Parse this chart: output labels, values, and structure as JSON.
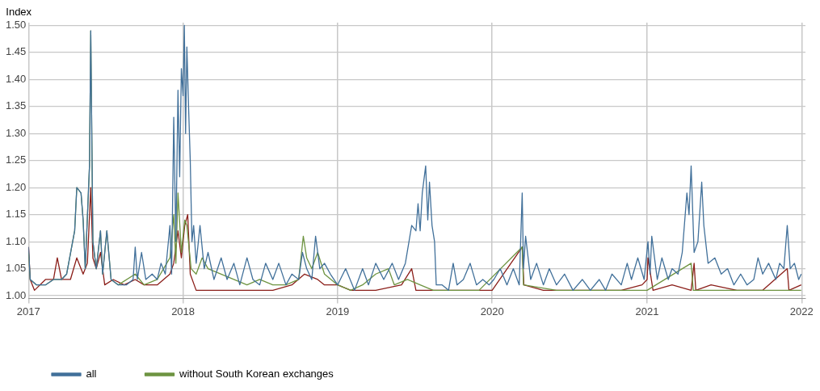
{
  "chart_data": {
    "type": "line",
    "ylabel": "Index",
    "grid": true,
    "legend": "bottom",
    "marker": "none",
    "line_style": "solid",
    "xlim": [
      "2017-01-01",
      "2022-01-10"
    ],
    "xticks": [
      {
        "value": "2017-01-01",
        "label": "2017"
      },
      {
        "value": "2018-01-01",
        "label": "2018"
      },
      {
        "value": "2019-01-01",
        "label": "2019"
      },
      {
        "value": "2020-01-01",
        "label": "2020"
      },
      {
        "value": "2021-01-01",
        "label": "2021"
      },
      {
        "value": "2022-01-01",
        "label": "2022"
      }
    ],
    "ylim": [
      0.995,
      1.505
    ],
    "yticks": [
      {
        "value": 1.0,
        "label": "1.00"
      },
      {
        "value": 1.05,
        "label": "1.05"
      },
      {
        "value": 1.1,
        "label": "1.10"
      },
      {
        "value": 1.15,
        "label": "1.15"
      },
      {
        "value": 1.2,
        "label": "1.20"
      },
      {
        "value": 1.25,
        "label": "1.25"
      },
      {
        "value": 1.3,
        "label": "1.30"
      },
      {
        "value": 1.35,
        "label": "1.35"
      },
      {
        "value": 1.4,
        "label": "1.40"
      },
      {
        "value": 1.45,
        "label": "1.45"
      },
      {
        "value": 1.5,
        "label": "1.50"
      }
    ],
    "series": [
      {
        "name": "all",
        "color": "#41709a",
        "x": [
          "2017-01-01",
          "2017-01-05",
          "2017-01-20",
          "2017-02-10",
          "2017-03-01",
          "2017-03-20",
          "2017-04-01",
          "2017-04-20",
          "2017-04-25",
          "2017-05-05",
          "2017-05-10",
          "2017-05-15",
          "2017-05-25",
          "2017-05-28",
          "2017-06-02",
          "2017-06-10",
          "2017-06-20",
          "2017-06-25",
          "2017-07-05",
          "2017-07-15",
          "2017-08-01",
          "2017-08-20",
          "2017-09-05",
          "2017-09-10",
          "2017-09-15",
          "2017-09-25",
          "2017-10-05",
          "2017-10-20",
          "2017-11-01",
          "2017-11-10",
          "2017-11-20",
          "2017-12-01",
          "2017-12-05",
          "2017-12-10",
          "2017-12-15",
          "2017-12-20",
          "2017-12-24",
          "2017-12-28",
          "2018-01-01",
          "2018-01-04",
          "2018-01-07",
          "2018-01-10",
          "2018-01-14",
          "2018-01-18",
          "2018-01-22",
          "2018-01-26",
          "2018-02-01",
          "2018-02-10",
          "2018-02-20",
          "2018-03-01",
          "2018-03-15",
          "2018-04-01",
          "2018-04-15",
          "2018-05-01",
          "2018-05-15",
          "2018-06-01",
          "2018-06-15",
          "2018-07-01",
          "2018-07-15",
          "2018-08-01",
          "2018-08-15",
          "2018-09-01",
          "2018-09-15",
          "2018-10-01",
          "2018-10-10",
          "2018-10-20",
          "2018-11-01",
          "2018-11-10",
          "2018-11-20",
          "2018-12-01",
          "2018-12-15",
          "2019-01-01",
          "2019-01-20",
          "2019-02-10",
          "2019-03-01",
          "2019-03-15",
          "2019-04-01",
          "2019-04-20",
          "2019-05-10",
          "2019-05-25",
          "2019-06-10",
          "2019-06-25",
          "2019-07-05",
          "2019-07-10",
          "2019-07-15",
          "2019-07-20",
          "2019-07-28",
          "2019-08-02",
          "2019-08-06",
          "2019-08-12",
          "2019-08-18",
          "2019-08-22",
          "2019-09-05",
          "2019-09-20",
          "2019-10-01",
          "2019-10-10",
          "2019-10-25",
          "2019-11-10",
          "2019-11-25",
          "2019-12-10",
          "2019-12-25",
          "2020-01-05",
          "2020-01-20",
          "2020-02-05",
          "2020-02-20",
          "2020-03-05",
          "2020-03-12",
          "2020-03-15",
          "2020-03-20",
          "2020-04-01",
          "2020-04-15",
          "2020-05-01",
          "2020-05-15",
          "2020-06-01",
          "2020-06-20",
          "2020-07-10",
          "2020-08-01",
          "2020-08-20",
          "2020-09-10",
          "2020-09-25",
          "2020-10-10",
          "2020-11-01",
          "2020-11-15",
          "2020-11-25",
          "2020-12-10",
          "2020-12-25",
          "2021-01-03",
          "2021-01-08",
          "2021-01-12",
          "2021-01-25",
          "2021-02-05",
          "2021-02-20",
          "2021-03-01",
          "2021-03-15",
          "2021-03-25",
          "2021-04-05",
          "2021-04-10",
          "2021-04-15",
          "2021-04-22",
          "2021-05-01",
          "2021-05-10",
          "2021-05-15",
          "2021-05-25",
          "2021-06-10",
          "2021-06-25",
          "2021-07-10",
          "2021-07-25",
          "2021-08-10",
          "2021-08-25",
          "2021-09-10",
          "2021-09-20",
          "2021-10-01",
          "2021-10-15",
          "2021-11-01",
          "2021-11-10",
          "2021-11-20",
          "2021-11-28",
          "2021-12-05",
          "2021-12-15",
          "2021-12-25",
          "2021-12-31"
        ],
        "values": [
          1.09,
          1.03,
          1.02,
          1.02,
          1.03,
          1.03,
          1.04,
          1.12,
          1.2,
          1.19,
          1.14,
          1.05,
          1.24,
          1.49,
          1.1,
          1.05,
          1.12,
          1.04,
          1.12,
          1.03,
          1.02,
          1.02,
          1.03,
          1.09,
          1.03,
          1.08,
          1.03,
          1.04,
          1.03,
          1.06,
          1.04,
          1.13,
          1.04,
          1.33,
          1.1,
          1.38,
          1.22,
          1.42,
          1.37,
          1.5,
          1.3,
          1.46,
          1.35,
          1.25,
          1.1,
          1.13,
          1.06,
          1.13,
          1.05,
          1.08,
          1.03,
          1.07,
          1.03,
          1.06,
          1.02,
          1.07,
          1.03,
          1.02,
          1.06,
          1.03,
          1.06,
          1.02,
          1.04,
          1.03,
          1.08,
          1.05,
          1.03,
          1.11,
          1.05,
          1.06,
          1.04,
          1.02,
          1.05,
          1.01,
          1.05,
          1.02,
          1.06,
          1.03,
          1.06,
          1.03,
          1.06,
          1.13,
          1.12,
          1.17,
          1.12,
          1.19,
          1.24,
          1.14,
          1.21,
          1.13,
          1.1,
          1.02,
          1.02,
          1.01,
          1.06,
          1.02,
          1.03,
          1.06,
          1.02,
          1.03,
          1.02,
          1.03,
          1.05,
          1.02,
          1.05,
          1.02,
          1.19,
          1.05,
          1.11,
          1.03,
          1.06,
          1.02,
          1.05,
          1.02,
          1.04,
          1.01,
          1.03,
          1.01,
          1.03,
          1.01,
          1.04,
          1.02,
          1.06,
          1.03,
          1.07,
          1.03,
          1.1,
          1.04,
          1.11,
          1.03,
          1.07,
          1.03,
          1.05,
          1.04,
          1.08,
          1.19,
          1.15,
          1.24,
          1.08,
          1.1,
          1.21,
          1.13,
          1.06,
          1.07,
          1.04,
          1.05,
          1.02,
          1.04,
          1.02,
          1.03,
          1.07,
          1.04,
          1.06,
          1.03,
          1.06,
          1.05,
          1.13,
          1.05,
          1.06,
          1.03,
          1.04
        ]
      },
      {
        "name": "without South Korean exchanges",
        "color": "#6e9441",
        "x": [
          "2017-01-01",
          "2017-01-05",
          "2017-01-20",
          "2017-02-10",
          "2017-03-01",
          "2017-03-20",
          "2017-04-01",
          "2017-04-20",
          "2017-04-25",
          "2017-05-05",
          "2017-05-10",
          "2017-05-15",
          "2017-05-25",
          "2017-05-28",
          "2017-06-02",
          "2017-06-10",
          "2017-06-20",
          "2017-06-25",
          "2017-07-05",
          "2017-07-15",
          "2017-08-01",
          "2017-09-10",
          "2017-10-01",
          "2017-11-01",
          "2017-12-01",
          "2017-12-10",
          "2017-12-15",
          "2017-12-20",
          "2017-12-28",
          "2018-01-05",
          "2018-01-10",
          "2018-01-20",
          "2018-02-01",
          "2018-02-15",
          "2018-03-01",
          "2018-04-01",
          "2018-05-01",
          "2018-06-01",
          "2018-07-01",
          "2018-08-01",
          "2018-09-01",
          "2018-10-01",
          "2018-10-12",
          "2018-10-20",
          "2018-11-01",
          "2018-11-15",
          "2018-12-01",
          "2019-01-01",
          "2019-02-01",
          "2019-03-01",
          "2019-04-01",
          "2019-05-01",
          "2019-05-15",
          "2019-06-15",
          "2019-07-15",
          "2019-08-15",
          "2019-10-01",
          "2019-12-01",
          "2020-03-12",
          "2020-03-15",
          "2020-06-01",
          "2020-09-01",
          "2021-01-01",
          "2021-04-15",
          "2021-04-20",
          "2021-07-01",
          "2021-10-01",
          "2021-12-31"
        ],
        "values": [
          1.08,
          1.03,
          1.02,
          1.02,
          1.03,
          1.03,
          1.04,
          1.12,
          1.2,
          1.19,
          1.14,
          1.05,
          1.24,
          1.49,
          1.1,
          1.05,
          1.12,
          1.04,
          1.12,
          1.03,
          1.02,
          1.04,
          1.02,
          1.03,
          1.07,
          1.15,
          1.06,
          1.19,
          1.08,
          1.14,
          1.13,
          1.05,
          1.04,
          1.07,
          1.05,
          1.04,
          1.03,
          1.02,
          1.03,
          1.02,
          1.02,
          1.03,
          1.11,
          1.07,
          1.05,
          1.08,
          1.04,
          1.02,
          1.01,
          1.02,
          1.04,
          1.05,
          1.02,
          1.03,
          1.02,
          1.01,
          1.01,
          1.01,
          1.09,
          1.02,
          1.01,
          1.01,
          1.01,
          1.06,
          1.01,
          1.01,
          1.01,
          1.01
        ]
      },
      {
        "color": "#8b1f1a",
        "x": [
          "2017-01-01",
          "2017-01-05",
          "2017-01-15",
          "2017-02-10",
          "2017-03-01",
          "2017-03-10",
          "2017-03-20",
          "2017-04-10",
          "2017-04-25",
          "2017-05-10",
          "2017-05-20",
          "2017-05-28",
          "2017-06-02",
          "2017-06-10",
          "2017-06-20",
          "2017-06-30",
          "2017-07-20",
          "2017-08-15",
          "2017-09-10",
          "2017-10-01",
          "2017-11-01",
          "2017-12-01",
          "2017-12-10",
          "2017-12-20",
          "2017-12-28",
          "2018-01-05",
          "2018-01-12",
          "2018-01-18",
          "2018-02-01",
          "2018-03-01",
          "2018-04-01",
          "2018-06-01",
          "2018-08-01",
          "2018-09-15",
          "2018-10-15",
          "2018-11-15",
          "2018-12-01",
          "2019-01-01",
          "2019-02-01",
          "2019-04-01",
          "2019-06-01",
          "2019-06-25",
          "2019-07-05",
          "2019-09-01",
          "2019-11-01",
          "2020-01-01",
          "2020-03-12",
          "2020-03-16",
          "2020-05-01",
          "2020-07-01",
          "2020-09-01",
          "2020-11-01",
          "2020-12-20",
          "2021-01-01",
          "2021-01-03",
          "2021-01-15",
          "2021-03-01",
          "2021-04-15",
          "2021-04-22",
          "2021-04-26",
          "2021-06-01",
          "2021-08-01",
          "2021-10-01",
          "2021-11-28",
          "2021-12-02",
          "2021-12-31"
        ],
        "values": [
          1.09,
          1.03,
          1.01,
          1.03,
          1.03,
          1.07,
          1.03,
          1.03,
          1.07,
          1.04,
          1.06,
          1.2,
          1.07,
          1.05,
          1.08,
          1.02,
          1.03,
          1.02,
          1.03,
          1.02,
          1.02,
          1.04,
          1.06,
          1.12,
          1.07,
          1.13,
          1.15,
          1.04,
          1.01,
          1.01,
          1.01,
          1.01,
          1.01,
          1.02,
          1.04,
          1.03,
          1.02,
          1.02,
          1.01,
          1.01,
          1.02,
          1.05,
          1.01,
          1.01,
          1.01,
          1.01,
          1.09,
          1.02,
          1.01,
          1.01,
          1.01,
          1.01,
          1.02,
          1.03,
          1.07,
          1.01,
          1.02,
          1.01,
          1.06,
          1.01,
          1.02,
          1.01,
          1.01,
          1.05,
          1.01,
          1.02
        ]
      }
    ]
  }
}
